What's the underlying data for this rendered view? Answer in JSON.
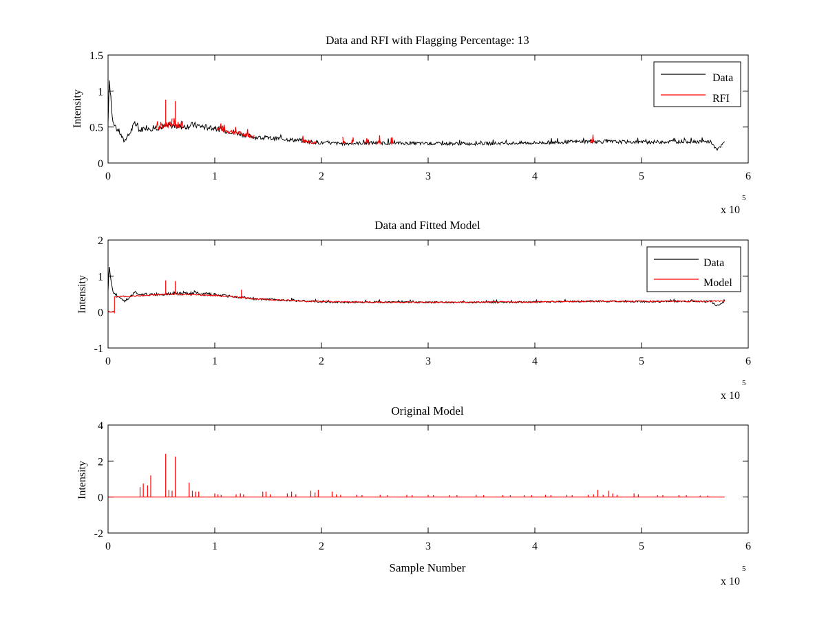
{
  "figure": {
    "background": "#ffffff",
    "axis_color": "#000000",
    "data_color": "#000000",
    "rfi_color": "#ff0000",
    "x_exponent_label": "x 10",
    "x_exponent_power": "5"
  },
  "chart_data": [
    {
      "type": "line",
      "title": "Data and RFI with Flagging Percentage: 13",
      "xlabel": "",
      "ylabel": "Intensity",
      "xlim": [
        0,
        6
      ],
      "ylim": [
        0,
        1.5
      ],
      "x_ticks": [
        "0",
        "1",
        "2",
        "3",
        "4",
        "5",
        "6"
      ],
      "y_ticks": [
        "0",
        "0.5",
        "1",
        "1.5"
      ],
      "y_tick_values": [
        0,
        0.5,
        1,
        1.5
      ],
      "grid": false,
      "legend": {
        "position": "top-right",
        "entries": [
          "Data",
          "RFI"
        ]
      },
      "series": [
        {
          "name": "Data",
          "color": "#000000",
          "x": [
            0,
            0.01,
            0.02,
            0.04,
            0.06,
            0.1,
            0.15,
            0.2,
            0.25,
            0.3,
            0.35,
            0.4,
            0.5,
            0.6,
            0.7,
            0.8,
            0.9,
            1.0,
            1.2,
            1.4,
            1.6,
            1.8,
            2.0,
            2.2,
            2.5,
            3.0,
            3.5,
            4.0,
            4.5,
            5.0,
            5.5,
            5.6,
            5.65,
            5.7,
            5.74,
            5.78
          ],
          "y": [
            0.55,
            1.2,
            1.05,
            0.6,
            0.5,
            0.45,
            0.3,
            0.4,
            0.55,
            0.45,
            0.5,
            0.48,
            0.5,
            0.52,
            0.5,
            0.53,
            0.5,
            0.48,
            0.42,
            0.35,
            0.34,
            0.31,
            0.28,
            0.27,
            0.28,
            0.27,
            0.27,
            0.28,
            0.3,
            0.29,
            0.3,
            0.29,
            0.3,
            0.18,
            0.22,
            0.3
          ]
        },
        {
          "name": "RFI",
          "color": "#ff0000",
          "segments": [
            [
              0.45,
              0.6
            ],
            [
              0.6,
              0.7
            ],
            [
              1.02,
              1.37
            ],
            [
              1.82,
              1.95
            ],
            [
              2.2,
              2.22
            ],
            [
              2.28,
              2.3
            ],
            [
              2.4,
              2.45
            ],
            [
              2.52,
              2.55
            ],
            [
              2.65,
              2.67
            ],
            [
              4.52,
              4.55
            ]
          ],
          "spikes": [
            {
              "x": 0.54,
              "y": 0.88
            },
            {
              "x": 0.63,
              "y": 0.86
            }
          ]
        }
      ]
    },
    {
      "type": "line",
      "title": "Data and Fitted Model",
      "xlabel": "",
      "ylabel": "Intensity",
      "xlim": [
        0,
        6
      ],
      "ylim": [
        -1,
        2
      ],
      "x_ticks": [
        "0",
        "1",
        "2",
        "3",
        "4",
        "5",
        "6"
      ],
      "y_ticks": [
        "-1",
        "0",
        "1",
        "2"
      ],
      "y_tick_values": [
        -1,
        0,
        1,
        2
      ],
      "grid": false,
      "legend": {
        "position": "top-right",
        "entries": [
          "Data",
          "Model"
        ]
      },
      "series": [
        {
          "name": "Data",
          "color": "#000000",
          "x": [
            0,
            0.01,
            0.02,
            0.04,
            0.06,
            0.1,
            0.15,
            0.2,
            0.25,
            0.3,
            0.35,
            0.4,
            0.5,
            0.6,
            0.7,
            0.8,
            0.9,
            1.0,
            1.2,
            1.4,
            1.6,
            1.8,
            2.0,
            2.2,
            2.5,
            3.0,
            3.5,
            4.0,
            4.5,
            5.0,
            5.5,
            5.6,
            5.65,
            5.7,
            5.74,
            5.78
          ],
          "y": [
            0.55,
            1.2,
            1.05,
            0.6,
            0.5,
            0.45,
            0.3,
            0.4,
            0.55,
            0.45,
            0.5,
            0.48,
            0.5,
            0.52,
            0.5,
            0.53,
            0.5,
            0.48,
            0.42,
            0.35,
            0.34,
            0.31,
            0.28,
            0.27,
            0.28,
            0.27,
            0.27,
            0.28,
            0.3,
            0.29,
            0.3,
            0.29,
            0.3,
            0.18,
            0.22,
            0.3
          ]
        },
        {
          "name": "Model",
          "color": "#ff0000",
          "x": [
            0,
            0.06,
            0.06,
            0.3,
            0.6,
            1.0,
            1.2,
            1.4,
            1.8,
            2.2,
            3.0,
            4.0,
            4.5,
            5.0,
            5.78
          ],
          "y": [
            0,
            0,
            0.42,
            0.45,
            0.5,
            0.46,
            0.42,
            0.36,
            0.31,
            0.28,
            0.27,
            0.28,
            0.3,
            0.3,
            0.3
          ],
          "spikes": [
            {
              "x": 0.54,
              "y": 0.88
            },
            {
              "x": 0.63,
              "y": 0.86
            },
            {
              "x": 1.25,
              "y": 0.62
            }
          ]
        }
      ]
    },
    {
      "type": "line",
      "title": "Original Model",
      "xlabel": "Sample Number",
      "ylabel": "Intensity",
      "xlim": [
        0,
        6
      ],
      "ylim": [
        -2,
        4
      ],
      "x_ticks": [
        "0",
        "1",
        "2",
        "3",
        "4",
        "5",
        "6"
      ],
      "y_ticks": [
        "-2",
        "0",
        "2",
        "4"
      ],
      "y_tick_values": [
        -2,
        0,
        2,
        4
      ],
      "grid": false,
      "series": [
        {
          "color": "#ff0000",
          "baseline": {
            "x": [
              0,
              5.78
            ],
            "y": 0
          },
          "spikes": [
            {
              "x": 0.3,
              "y": 0.55
            },
            {
              "x": 0.33,
              "y": 0.75
            },
            {
              "x": 0.37,
              "y": 0.65
            },
            {
              "x": 0.4,
              "y": 1.2
            },
            {
              "x": 0.54,
              "y": 2.4
            },
            {
              "x": 0.57,
              "y": 0.4
            },
            {
              "x": 0.6,
              "y": 0.35
            },
            {
              "x": 0.63,
              "y": 2.25
            },
            {
              "x": 0.76,
              "y": 0.8
            },
            {
              "x": 0.79,
              "y": 0.35
            },
            {
              "x": 0.82,
              "y": 0.3
            },
            {
              "x": 0.85,
              "y": 0.3
            },
            {
              "x": 1.0,
              "y": 0.2
            },
            {
              "x": 1.03,
              "y": 0.15
            },
            {
              "x": 1.06,
              "y": 0.12
            },
            {
              "x": 1.2,
              "y": 0.15
            },
            {
              "x": 1.24,
              "y": 0.2
            },
            {
              "x": 1.27,
              "y": 0.15
            },
            {
              "x": 1.45,
              "y": 0.3
            },
            {
              "x": 1.48,
              "y": 0.3
            },
            {
              "x": 1.52,
              "y": 0.15
            },
            {
              "x": 1.68,
              "y": 0.2
            },
            {
              "x": 1.72,
              "y": 0.3
            },
            {
              "x": 1.76,
              "y": 0.15
            },
            {
              "x": 1.9,
              "y": 0.35
            },
            {
              "x": 1.94,
              "y": 0.25
            },
            {
              "x": 1.97,
              "y": 0.4
            },
            {
              "x": 2.1,
              "y": 0.3
            },
            {
              "x": 2.14,
              "y": 0.15
            },
            {
              "x": 2.18,
              "y": 0.12
            },
            {
              "x": 2.33,
              "y": 0.12
            },
            {
              "x": 2.38,
              "y": 0.1
            },
            {
              "x": 2.55,
              "y": 0.12
            },
            {
              "x": 2.62,
              "y": 0.1
            },
            {
              "x": 2.8,
              "y": 0.12
            },
            {
              "x": 2.85,
              "y": 0.1
            },
            {
              "x": 3.0,
              "y": 0.12
            },
            {
              "x": 3.05,
              "y": 0.1
            },
            {
              "x": 3.2,
              "y": 0.1
            },
            {
              "x": 3.27,
              "y": 0.1
            },
            {
              "x": 3.45,
              "y": 0.12
            },
            {
              "x": 3.52,
              "y": 0.1
            },
            {
              "x": 3.7,
              "y": 0.1
            },
            {
              "x": 3.77,
              "y": 0.1
            },
            {
              "x": 3.9,
              "y": 0.1
            },
            {
              "x": 3.97,
              "y": 0.1
            },
            {
              "x": 4.1,
              "y": 0.12
            },
            {
              "x": 4.15,
              "y": 0.1
            },
            {
              "x": 4.3,
              "y": 0.12
            },
            {
              "x": 4.35,
              "y": 0.1
            },
            {
              "x": 4.5,
              "y": 0.12
            },
            {
              "x": 4.55,
              "y": 0.15
            },
            {
              "x": 4.59,
              "y": 0.4
            },
            {
              "x": 4.64,
              "y": 0.12
            },
            {
              "x": 4.69,
              "y": 0.35
            },
            {
              "x": 4.73,
              "y": 0.2
            },
            {
              "x": 4.77,
              "y": 0.12
            },
            {
              "x": 4.93,
              "y": 0.2
            },
            {
              "x": 4.97,
              "y": 0.15
            },
            {
              "x": 5.15,
              "y": 0.1
            },
            {
              "x": 5.2,
              "y": 0.1
            },
            {
              "x": 5.35,
              "y": 0.1
            },
            {
              "x": 5.42,
              "y": 0.1
            },
            {
              "x": 5.55,
              "y": 0.08
            },
            {
              "x": 5.62,
              "y": 0.08
            }
          ]
        }
      ]
    }
  ]
}
